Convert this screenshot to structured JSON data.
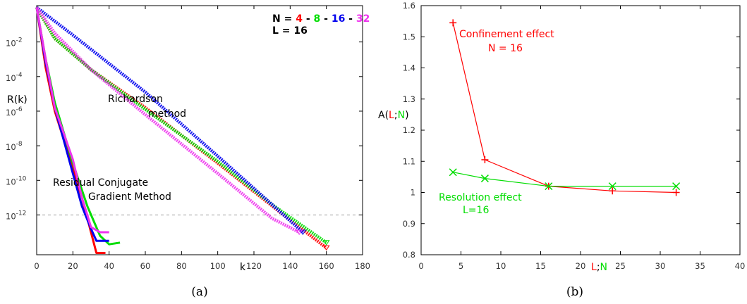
{
  "colors": {
    "red": "#ff0000",
    "green": "#00dd00",
    "blue": "#0000ee",
    "magenta": "#ee33ee",
    "axis": "#000000",
    "dash": "#999999"
  },
  "chart_data": [
    {
      "type": "line",
      "caption": "(a)",
      "ylabel": "R(k)",
      "xlabel": "k",
      "ylog": true,
      "xlim": [
        0,
        180
      ],
      "ylim": [
        -14.3,
        0.1
      ],
      "x_ticks": [
        "0",
        "20",
        "40",
        "60",
        "80",
        "100",
        "120",
        "140",
        "160",
        "180"
      ],
      "y_ticks": [
        {
          "base": "10",
          "exp": "-2"
        },
        {
          "base": "10",
          "exp": "-4"
        },
        {
          "base": "10",
          "exp": "-6"
        },
        {
          "base": "10",
          "exp": "-8"
        },
        {
          "base": "10",
          "exp": "-10"
        },
        {
          "base": "10",
          "exp": "-12"
        }
      ],
      "reference_line_log10": -12,
      "legend": {
        "prefix": "N = ",
        "sep": " - ",
        "items": [
          {
            "label": "4",
            "color": "#ff0000"
          },
          {
            "label": "8",
            "color": "#00dd00"
          },
          {
            "label": "16",
            "color": "#0000ee"
          },
          {
            "label": "32",
            "color": "#ee33ee"
          }
        ],
        "line2": "L = 16"
      },
      "annotations": {
        "richardson_1": "Richardson",
        "richardson_2": "method",
        "cg_1": "Residual Conjugate",
        "cg_2": "Gradient Method"
      },
      "series": [
        {
          "name": "4",
          "method": "Richardson",
          "color": "#ff0000",
          "points": [
            [
              0,
              0
            ],
            [
              10,
              -1.8
            ],
            [
              30,
              -3.6
            ],
            [
              60,
              -5.8
            ],
            [
              100,
              -9.0
            ],
            [
              140,
              -12.3
            ],
            [
              160,
              -13.9
            ]
          ]
        },
        {
          "name": "8",
          "method": "Richardson",
          "color": "#00dd00",
          "points": [
            [
              0,
              0
            ],
            [
              10,
              -1.8
            ],
            [
              30,
              -3.6
            ],
            [
              60,
              -5.9
            ],
            [
              100,
              -8.9
            ],
            [
              130,
              -11.4
            ],
            [
              160,
              -13.6
            ]
          ]
        },
        {
          "name": "16",
          "method": "Richardson",
          "color": "#0000ee",
          "points": [
            [
              0,
              0
            ],
            [
              20,
              -1.6
            ],
            [
              60,
              -4.9
            ],
            [
              100,
              -8.6
            ],
            [
              130,
              -11.4
            ],
            [
              147,
              -13.0
            ]
          ]
        },
        {
          "name": "32",
          "method": "Richardson",
          "color": "#ee33ee",
          "points": [
            [
              0,
              0
            ],
            [
              10,
              -1.5
            ],
            [
              30,
              -3.6
            ],
            [
              60,
              -6.2
            ],
            [
              100,
              -9.6
            ],
            [
              130,
              -12.2
            ],
            [
              145,
              -13.0
            ]
          ]
        },
        {
          "name": "4",
          "method": "RCG",
          "color": "#ff0000",
          "points": [
            [
              0,
              0
            ],
            [
              5,
              -3.5
            ],
            [
              10,
              -6.0
            ],
            [
              20,
              -9.3
            ],
            [
              25,
              -11.0
            ],
            [
              30,
              -13.0
            ],
            [
              33,
              -14.2
            ],
            [
              38,
              -14.2
            ]
          ]
        },
        {
          "name": "8",
          "method": "RCG",
          "color": "#00dd00",
          "points": [
            [
              0,
              0
            ],
            [
              5,
              -3.0
            ],
            [
              10,
              -5.5
            ],
            [
              20,
              -9.0
            ],
            [
              28,
              -11.5
            ],
            [
              35,
              -13.2
            ],
            [
              40,
              -13.7
            ],
            [
              46,
              -13.6
            ]
          ]
        },
        {
          "name": "16",
          "method": "RCG",
          "color": "#0000ee",
          "points": [
            [
              0,
              0
            ],
            [
              5,
              -3.2
            ],
            [
              10,
              -5.8
            ],
            [
              20,
              -9.6
            ],
            [
              25,
              -11.5
            ],
            [
              30,
              -12.8
            ],
            [
              33,
              -13.5
            ],
            [
              40,
              -13.5
            ]
          ]
        },
        {
          "name": "32",
          "method": "RCG",
          "color": "#ee33ee",
          "points": [
            [
              0,
              0
            ],
            [
              5,
              -3.0
            ],
            [
              10,
              -5.8
            ],
            [
              20,
              -8.8
            ],
            [
              25,
              -11.0
            ],
            [
              30,
              -12.7
            ],
            [
              35,
              -13.0
            ],
            [
              40,
              -13.0
            ]
          ]
        }
      ]
    },
    {
      "type": "line",
      "caption": "(b)",
      "ylabel": {
        "prefix": "A(",
        "L": "L",
        "sep": ";",
        "N": "N",
        "suffix": ")"
      },
      "xlabel": {
        "L": "L",
        "sep": ";",
        "N": "N"
      },
      "xlim": [
        0,
        40
      ],
      "ylim": [
        0.8,
        1.6
      ],
      "x_ticks": [
        "0",
        "5",
        "10",
        "15",
        "20",
        "25",
        "30",
        "35",
        "40"
      ],
      "y_ticks": [
        "0.8",
        "0.9",
        "1",
        "1.1",
        "1.2",
        "1.3",
        "1.4",
        "1.5",
        "1.6"
      ],
      "annotations": {
        "confinement_1": "Confinement effect",
        "confinement_2": "N = 16",
        "resolution_1": "Resolution effect",
        "resolution_2": "L=16"
      },
      "series": [
        {
          "name": "Confinement effect",
          "color": "#ff0000",
          "marker": "plus",
          "points": [
            [
              4,
              1.545
            ],
            [
              8,
              1.105
            ],
            [
              16,
              1.02
            ],
            [
              24,
              1.005
            ],
            [
              32,
              1.0
            ]
          ]
        },
        {
          "name": "Resolution effect",
          "color": "#00dd00",
          "marker": "cross",
          "points": [
            [
              4,
              1.065
            ],
            [
              8,
              1.045
            ],
            [
              16,
              1.02
            ],
            [
              24,
              1.02
            ],
            [
              32,
              1.02
            ]
          ]
        }
      ]
    }
  ]
}
